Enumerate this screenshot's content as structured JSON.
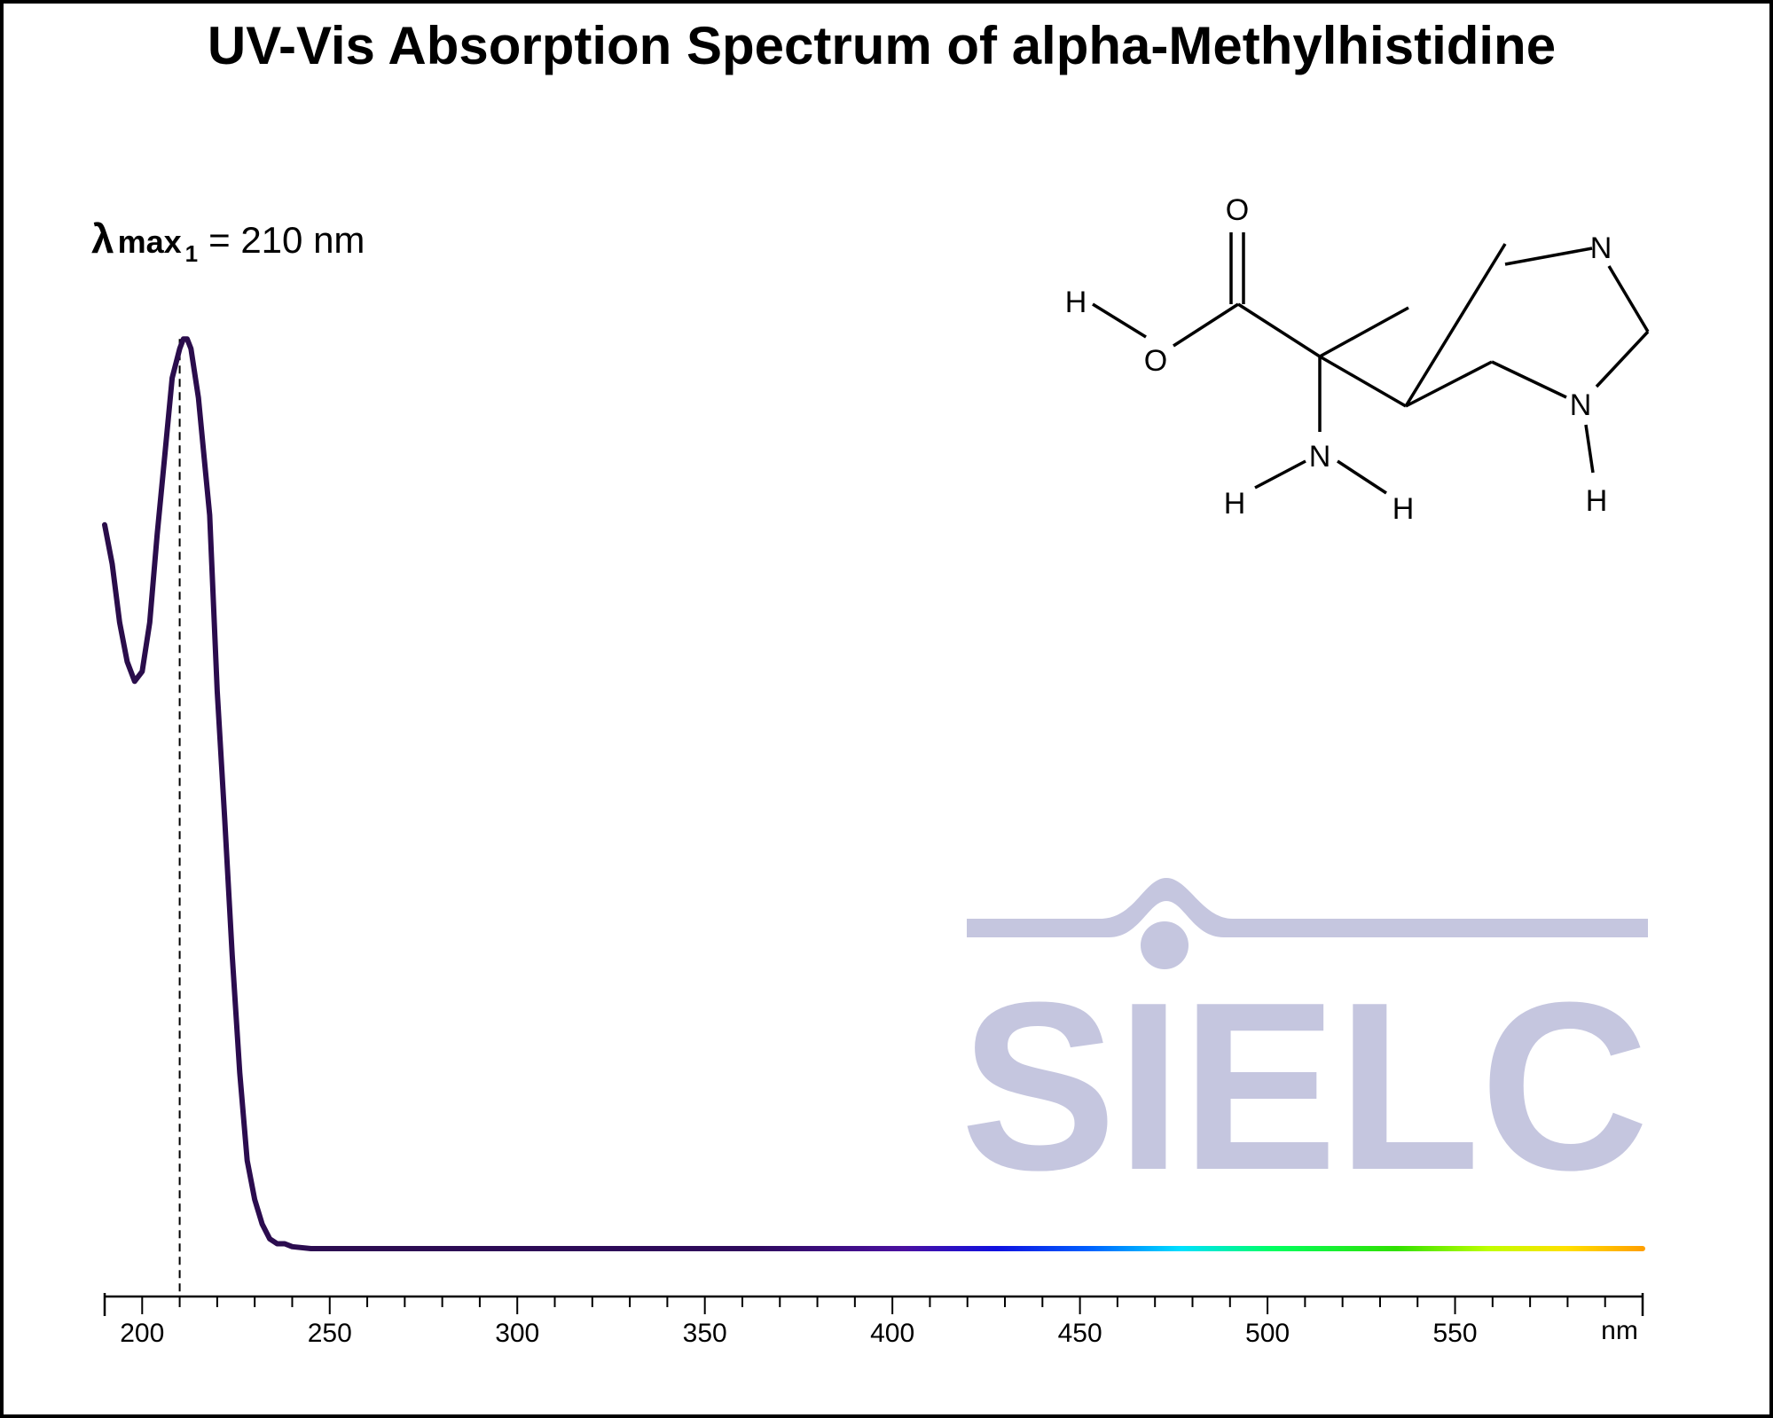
{
  "chart_data": {
    "type": "line",
    "title": "UV-Vis Absorption Spectrum of alpha-Methylhistidine",
    "xlabel": "",
    "ylabel": "",
    "x_unit_label": "nm",
    "xlim": [
      190,
      600
    ],
    "ylim": [
      0,
      1
    ],
    "x_ticks": [
      200,
      250,
      300,
      350,
      400,
      450,
      500,
      550
    ],
    "x_tick_labels": [
      "200",
      "250",
      "300",
      "350",
      "400",
      "450",
      "500",
      "550"
    ],
    "grid": false,
    "annotation": {
      "symbol": "λ",
      "sub1": "max",
      "sub2": "1",
      "text": "= 210 nm",
      "x": 210
    },
    "series": [
      {
        "x": [
          190,
          192,
          194,
          196,
          198,
          200,
          202,
          204,
          206,
          208,
          210,
          211,
          212,
          213,
          215,
          218,
          220,
          222,
          224,
          226,
          228,
          230,
          232,
          234,
          236,
          238,
          240,
          245,
          250,
          300,
          350,
          400,
          450,
          500,
          550,
          600
        ],
        "y": [
          0.74,
          0.7,
          0.64,
          0.6,
          0.58,
          0.59,
          0.64,
          0.73,
          0.81,
          0.89,
          0.92,
          0.93,
          0.93,
          0.92,
          0.87,
          0.75,
          0.57,
          0.44,
          0.3,
          0.18,
          0.09,
          0.05,
          0.025,
          0.01,
          0.005,
          0.005,
          0.002,
          0.0,
          0.0,
          0.0,
          0.0,
          0.0,
          0.0,
          0.0,
          0.0,
          0.0
        ]
      }
    ]
  },
  "molecule": {
    "atoms": [
      "O",
      "H",
      "O",
      "N",
      "H",
      "H",
      "N",
      "N",
      "H"
    ]
  },
  "watermark": {
    "text": "SIELC",
    "color": "#c5c6df"
  }
}
